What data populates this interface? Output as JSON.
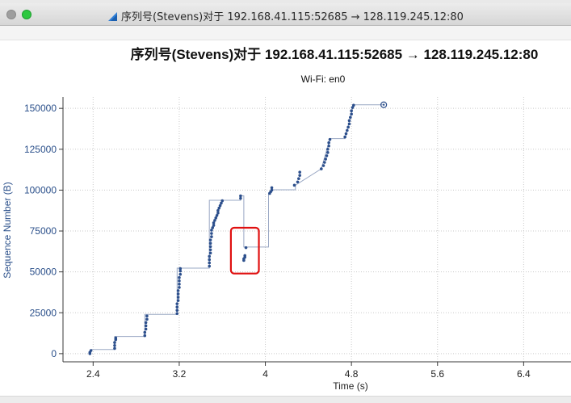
{
  "window": {
    "title": "序列号(Stevens)对于 192.168.41.115:52685 → 128.119.245.12:80"
  },
  "chart_data": {
    "type": "scatter",
    "title": "序列号(Stevens)对于 192.168.41.115:52685 → 128.119.245.12:80",
    "subtitle": "Wi-Fi: en0",
    "xlabel": "Time (s)",
    "ylabel": "Sequence Number (B)",
    "xlim": [
      2.12,
      6.84
    ],
    "ylim": [
      -5000,
      157000
    ],
    "x_ticks": [
      2.4,
      3.2,
      4,
      4.8,
      5.6,
      6.4
    ],
    "x_tick_labels": [
      "2.4",
      "3.2",
      "4",
      "4.8",
      "5.6",
      "6.4"
    ],
    "y_ticks": [
      0,
      25000,
      50000,
      75000,
      100000,
      125000,
      150000
    ],
    "y_tick_labels": [
      "0",
      "25000",
      "50000",
      "75000",
      "100000",
      "125000",
      "150000"
    ],
    "grid": true,
    "point_color": "#2c4f8c",
    "line_color": "#9aa8c4",
    "highlight_color": "#e01010",
    "series": [
      {
        "values": [
          {
            "x": 2.37,
            "y": 0
          },
          {
            "x": 2.37,
            "y": 800
          },
          {
            "x": 2.38,
            "y": 1900
          },
          {
            "x": 2.6,
            "y": 3200
          },
          {
            "x": 2.6,
            "y": 5000
          },
          {
            "x": 2.6,
            "y": 6800
          },
          {
            "x": 2.61,
            "y": 8600
          },
          {
            "x": 2.61,
            "y": 9600
          },
          {
            "x": 2.88,
            "y": 11000
          },
          {
            "x": 2.88,
            "y": 13000
          },
          {
            "x": 2.89,
            "y": 15000
          },
          {
            "x": 2.89,
            "y": 17000
          },
          {
            "x": 2.89,
            "y": 19000
          },
          {
            "x": 2.9,
            "y": 21000
          },
          {
            "x": 2.9,
            "y": 23000
          },
          {
            "x": 3.18,
            "y": 24500
          },
          {
            "x": 3.18,
            "y": 26500
          },
          {
            "x": 3.18,
            "y": 28500
          },
          {
            "x": 3.18,
            "y": 30500
          },
          {
            "x": 3.19,
            "y": 32500
          },
          {
            "x": 3.19,
            "y": 34500
          },
          {
            "x": 3.19,
            "y": 36500
          },
          {
            "x": 3.19,
            "y": 38500
          },
          {
            "x": 3.2,
            "y": 40500
          },
          {
            "x": 3.2,
            "y": 42500
          },
          {
            "x": 3.2,
            "y": 44500
          },
          {
            "x": 3.2,
            "y": 46500
          },
          {
            "x": 3.21,
            "y": 48500
          },
          {
            "x": 3.21,
            "y": 50500
          },
          {
            "x": 3.21,
            "y": 52000
          },
          {
            "x": 3.48,
            "y": 53500
          },
          {
            "x": 3.48,
            "y": 55500
          },
          {
            "x": 3.48,
            "y": 57500
          },
          {
            "x": 3.48,
            "y": 59500
          },
          {
            "x": 3.49,
            "y": 61500
          },
          {
            "x": 3.49,
            "y": 63500
          },
          {
            "x": 3.49,
            "y": 65500
          },
          {
            "x": 3.49,
            "y": 67500
          },
          {
            "x": 3.49,
            "y": 69500
          },
          {
            "x": 3.5,
            "y": 71500
          },
          {
            "x": 3.5,
            "y": 73500
          },
          {
            "x": 3.5,
            "y": 75500
          },
          {
            "x": 3.51,
            "y": 77000
          },
          {
            "x": 3.52,
            "y": 78500
          },
          {
            "x": 3.52,
            "y": 80000
          },
          {
            "x": 3.53,
            "y": 81500
          },
          {
            "x": 3.54,
            "y": 83000
          },
          {
            "x": 3.55,
            "y": 84500
          },
          {
            "x": 3.56,
            "y": 86000
          },
          {
            "x": 3.56,
            "y": 87500
          },
          {
            "x": 3.57,
            "y": 89000
          },
          {
            "x": 3.58,
            "y": 90500
          },
          {
            "x": 3.59,
            "y": 92000
          },
          {
            "x": 3.6,
            "y": 93500
          },
          {
            "x": 3.77,
            "y": 95000
          },
          {
            "x": 3.77,
            "y": 96500
          },
          {
            "x": 3.8,
            "y": 57000
          },
          {
            "x": 3.8,
            "y": 58000
          },
          {
            "x": 3.81,
            "y": 59000
          },
          {
            "x": 3.81,
            "y": 60000
          },
          {
            "x": 3.82,
            "y": 64800
          },
          {
            "x": 4.04,
            "y": 98000
          },
          {
            "x": 4.05,
            "y": 99000
          },
          {
            "x": 4.06,
            "y": 100000
          },
          {
            "x": 4.06,
            "y": 101500
          },
          {
            "x": 4.27,
            "y": 103000
          },
          {
            "x": 4.3,
            "y": 105000
          },
          {
            "x": 4.31,
            "y": 107000
          },
          {
            "x": 4.32,
            "y": 109000
          },
          {
            "x": 4.32,
            "y": 111000
          },
          {
            "x": 4.52,
            "y": 113000
          },
          {
            "x": 4.54,
            "y": 115000
          },
          {
            "x": 4.55,
            "y": 117000
          },
          {
            "x": 4.56,
            "y": 119000
          },
          {
            "x": 4.57,
            "y": 121000
          },
          {
            "x": 4.58,
            "y": 123000
          },
          {
            "x": 4.58,
            "y": 125000
          },
          {
            "x": 4.59,
            "y": 127000
          },
          {
            "x": 4.59,
            "y": 129000
          },
          {
            "x": 4.6,
            "y": 131000
          },
          {
            "x": 4.74,
            "y": 132500
          },
          {
            "x": 4.75,
            "y": 134500
          },
          {
            "x": 4.76,
            "y": 136500
          },
          {
            "x": 4.77,
            "y": 138500
          },
          {
            "x": 4.78,
            "y": 140500
          },
          {
            "x": 4.78,
            "y": 142500
          },
          {
            "x": 4.79,
            "y": 144500
          },
          {
            "x": 4.8,
            "y": 146500
          },
          {
            "x": 4.8,
            "y": 148500
          },
          {
            "x": 4.81,
            "y": 150500
          },
          {
            "x": 4.82,
            "y": 151900
          }
        ]
      }
    ],
    "ack_line": [
      {
        "x": 2.38,
        "y": 2500
      },
      {
        "x": 2.6,
        "y": 2500
      },
      {
        "x": 2.6,
        "y": 10500
      },
      {
        "x": 2.88,
        "y": 10500
      },
      {
        "x": 2.88,
        "y": 24000
      },
      {
        "x": 3.18,
        "y": 24000
      },
      {
        "x": 3.18,
        "y": 52300
      },
      {
        "x": 3.48,
        "y": 52300
      },
      {
        "x": 3.48,
        "y": 93800
      },
      {
        "x": 3.77,
        "y": 93800
      },
      {
        "x": 3.77,
        "y": 96500
      },
      {
        "x": 3.8,
        "y": 96500
      },
      {
        "x": 3.8,
        "y": 65200
      },
      {
        "x": 4.03,
        "y": 65200
      },
      {
        "x": 4.03,
        "y": 97500
      },
      {
        "x": 4.06,
        "y": 100200
      },
      {
        "x": 4.28,
        "y": 100200
      },
      {
        "x": 4.28,
        "y": 103000
      },
      {
        "x": 4.52,
        "y": 113000
      },
      {
        "x": 4.6,
        "y": 131500
      },
      {
        "x": 4.74,
        "y": 131500
      },
      {
        "x": 4.82,
        "y": 152200
      },
      {
        "x": 5.1,
        "y": 152200
      }
    ],
    "last_point": {
      "x": 5.1,
      "y": 152200
    },
    "highlight_box": {
      "x": [
        3.68,
        3.94
      ],
      "y": [
        49000,
        77000
      ]
    }
  }
}
